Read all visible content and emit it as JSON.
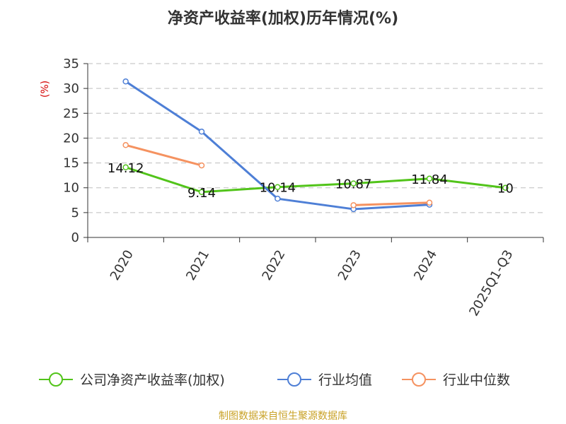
{
  "chart_data": {
    "type": "line",
    "title": "净资产收益率(加权)历年情况(%)",
    "xlabel": "",
    "ylabel": "(%)",
    "categories": [
      "2020",
      "2021",
      "2022",
      "2023",
      "2024",
      "2025Q1-Q3"
    ],
    "ylim": [
      0,
      35
    ],
    "yticks": [
      0,
      5,
      10,
      15,
      20,
      25,
      30,
      35
    ],
    "grid": true,
    "legend_position": "bottom",
    "series": [
      {
        "name": "公司净资产收益率(加权)",
        "color": "#52c41a",
        "values": [
          14.12,
          9.14,
          10.14,
          10.87,
          11.84,
          10
        ],
        "labels": [
          "14.12",
          "9.14",
          "10.14",
          "10.87",
          "11.84",
          "10"
        ]
      },
      {
        "name": "行业均值",
        "color": "#4e7fd6",
        "values": [
          31.4,
          21.3,
          7.8,
          5.7,
          6.6,
          null
        ]
      },
      {
        "name": "行业中位数",
        "color": "#f59260",
        "values": [
          18.6,
          14.5,
          null,
          6.5,
          7.0,
          null
        ]
      }
    ]
  },
  "footer": {
    "source": "制图数据来自恒生聚源数据库",
    "color": "#c9a227"
  },
  "ylabel_color": "#d40000"
}
